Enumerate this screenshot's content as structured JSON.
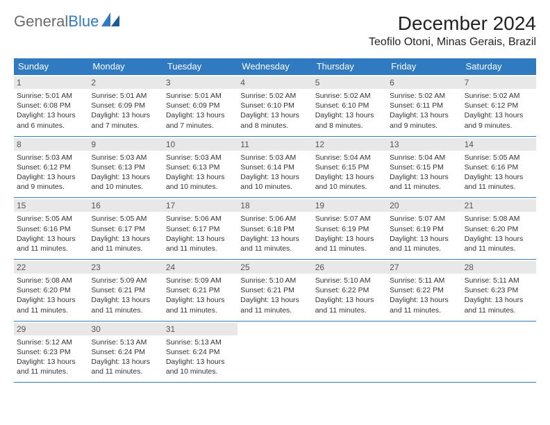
{
  "brand": {
    "part1": "General",
    "part2": "Blue"
  },
  "title": "December 2024",
  "location": "Teofilo Otoni, Minas Gerais, Brazil",
  "day_labels": [
    "Sunday",
    "Monday",
    "Tuesday",
    "Wednesday",
    "Thursday",
    "Friday",
    "Saturday"
  ],
  "colors": {
    "header_bg": "#2f7ac0",
    "header_text": "#ffffff",
    "daynum_bg": "#e8e8e8",
    "border": "#2f7ac0"
  },
  "weeks": [
    [
      {
        "n": "1",
        "sr": "5:01 AM",
        "ss": "6:08 PM",
        "dh": "13",
        "dm": "6"
      },
      {
        "n": "2",
        "sr": "5:01 AM",
        "ss": "6:09 PM",
        "dh": "13",
        "dm": "7"
      },
      {
        "n": "3",
        "sr": "5:01 AM",
        "ss": "6:09 PM",
        "dh": "13",
        "dm": "7"
      },
      {
        "n": "4",
        "sr": "5:02 AM",
        "ss": "6:10 PM",
        "dh": "13",
        "dm": "8"
      },
      {
        "n": "5",
        "sr": "5:02 AM",
        "ss": "6:10 PM",
        "dh": "13",
        "dm": "8"
      },
      {
        "n": "6",
        "sr": "5:02 AM",
        "ss": "6:11 PM",
        "dh": "13",
        "dm": "9"
      },
      {
        "n": "7",
        "sr": "5:02 AM",
        "ss": "6:12 PM",
        "dh": "13",
        "dm": "9"
      }
    ],
    [
      {
        "n": "8",
        "sr": "5:03 AM",
        "ss": "6:12 PM",
        "dh": "13",
        "dm": "9"
      },
      {
        "n": "9",
        "sr": "5:03 AM",
        "ss": "6:13 PM",
        "dh": "13",
        "dm": "10"
      },
      {
        "n": "10",
        "sr": "5:03 AM",
        "ss": "6:13 PM",
        "dh": "13",
        "dm": "10"
      },
      {
        "n": "11",
        "sr": "5:03 AM",
        "ss": "6:14 PM",
        "dh": "13",
        "dm": "10"
      },
      {
        "n": "12",
        "sr": "5:04 AM",
        "ss": "6:15 PM",
        "dh": "13",
        "dm": "10"
      },
      {
        "n": "13",
        "sr": "5:04 AM",
        "ss": "6:15 PM",
        "dh": "13",
        "dm": "11"
      },
      {
        "n": "14",
        "sr": "5:05 AM",
        "ss": "6:16 PM",
        "dh": "13",
        "dm": "11"
      }
    ],
    [
      {
        "n": "15",
        "sr": "5:05 AM",
        "ss": "6:16 PM",
        "dh": "13",
        "dm": "11"
      },
      {
        "n": "16",
        "sr": "5:05 AM",
        "ss": "6:17 PM",
        "dh": "13",
        "dm": "11"
      },
      {
        "n": "17",
        "sr": "5:06 AM",
        "ss": "6:17 PM",
        "dh": "13",
        "dm": "11"
      },
      {
        "n": "18",
        "sr": "5:06 AM",
        "ss": "6:18 PM",
        "dh": "13",
        "dm": "11"
      },
      {
        "n": "19",
        "sr": "5:07 AM",
        "ss": "6:19 PM",
        "dh": "13",
        "dm": "11"
      },
      {
        "n": "20",
        "sr": "5:07 AM",
        "ss": "6:19 PM",
        "dh": "13",
        "dm": "11"
      },
      {
        "n": "21",
        "sr": "5:08 AM",
        "ss": "6:20 PM",
        "dh": "13",
        "dm": "11"
      }
    ],
    [
      {
        "n": "22",
        "sr": "5:08 AM",
        "ss": "6:20 PM",
        "dh": "13",
        "dm": "11"
      },
      {
        "n": "23",
        "sr": "5:09 AM",
        "ss": "6:21 PM",
        "dh": "13",
        "dm": "11"
      },
      {
        "n": "24",
        "sr": "5:09 AM",
        "ss": "6:21 PM",
        "dh": "13",
        "dm": "11"
      },
      {
        "n": "25",
        "sr": "5:10 AM",
        "ss": "6:21 PM",
        "dh": "13",
        "dm": "11"
      },
      {
        "n": "26",
        "sr": "5:10 AM",
        "ss": "6:22 PM",
        "dh": "13",
        "dm": "11"
      },
      {
        "n": "27",
        "sr": "5:11 AM",
        "ss": "6:22 PM",
        "dh": "13",
        "dm": "11"
      },
      {
        "n": "28",
        "sr": "5:11 AM",
        "ss": "6:23 PM",
        "dh": "13",
        "dm": "11"
      }
    ],
    [
      {
        "n": "29",
        "sr": "5:12 AM",
        "ss": "6:23 PM",
        "dh": "13",
        "dm": "11"
      },
      {
        "n": "30",
        "sr": "5:13 AM",
        "ss": "6:24 PM",
        "dh": "13",
        "dm": "11"
      },
      {
        "n": "31",
        "sr": "5:13 AM",
        "ss": "6:24 PM",
        "dh": "13",
        "dm": "10"
      },
      null,
      null,
      null,
      null
    ]
  ]
}
